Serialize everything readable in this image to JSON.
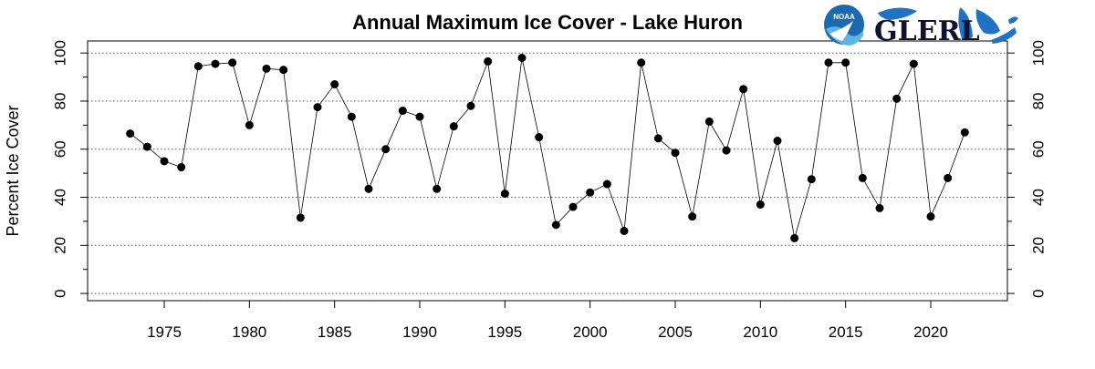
{
  "chart_data": {
    "type": "line",
    "title": "Annual Maximum Ice Cover - Lake Huron",
    "ylabel": "Percent Ice Cover",
    "xlabel": "",
    "xlim": [
      1970.5,
      2024.5
    ],
    "ylim": [
      -3,
      105
    ],
    "x_ticks": [
      1975,
      1980,
      1985,
      1990,
      1995,
      2000,
      2005,
      2010,
      2015,
      2020
    ],
    "y_ticks": [
      0,
      20,
      40,
      60,
      80,
      100
    ],
    "y_minor_ticks": [
      10,
      30,
      50,
      70,
      90
    ],
    "grid": "horizontal-dotted",
    "x": [
      1973,
      1974,
      1975,
      1976,
      1977,
      1978,
      1979,
      1980,
      1981,
      1982,
      1983,
      1984,
      1985,
      1986,
      1987,
      1988,
      1989,
      1990,
      1991,
      1992,
      1993,
      1994,
      1995,
      1996,
      1997,
      1998,
      1999,
      2000,
      2001,
      2002,
      2003,
      2004,
      2005,
      2006,
      2007,
      2008,
      2009,
      2010,
      2011,
      2012,
      2013,
      2014,
      2015,
      2016,
      2017,
      2018,
      2019,
      2020,
      2021,
      2022
    ],
    "values": [
      66.5,
      61,
      55,
      52.5,
      94.5,
      95.5,
      96,
      70,
      93.5,
      93,
      31.5,
      77.5,
      87,
      73.5,
      43.5,
      60,
      76,
      73.5,
      43.5,
      69.5,
      78,
      96.5,
      41.5,
      98,
      65,
      28.5,
      36,
      42,
      45.5,
      26,
      96,
      64.5,
      58.5,
      32,
      71.5,
      59.5,
      85,
      37,
      63.5,
      23,
      47.5,
      96,
      96,
      48,
      35.5,
      81,
      95.5,
      32,
      48,
      67
    ]
  },
  "logos": {
    "noaa_text": "NOAA",
    "glerl_text": "GLERL",
    "noaa_blue": "#1b6ab0",
    "noaa_light": "#5fb4e6",
    "lakes_blue": "#1f72c6"
  }
}
